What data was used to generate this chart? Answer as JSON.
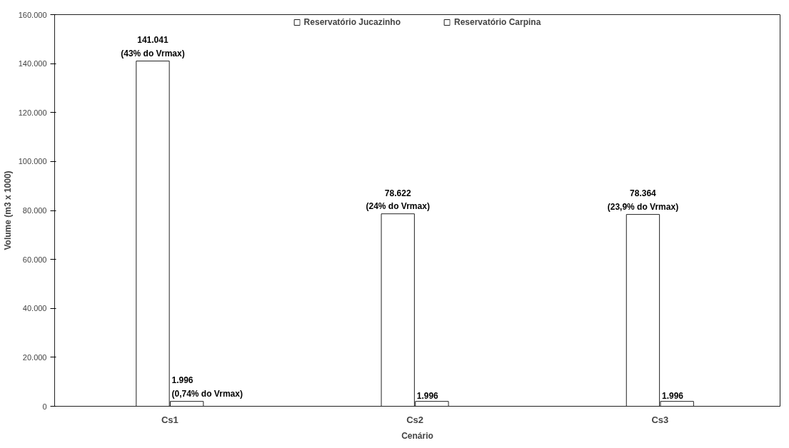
{
  "chart_data": {
    "type": "bar",
    "xlabel": "Cenário",
    "ylabel": "Volume (m3 x 1000)",
    "categories": [
      "Cs1",
      "Cs2",
      "Cs3"
    ],
    "series": [
      {
        "name": "Reservatório Jucazinho",
        "color": "#ffffff",
        "values": [
          141041,
          78622,
          78364
        ],
        "value_labels": [
          "141.041\n(43% do Vrmax)",
          "78.622\n(24% do Vrmax)",
          "78.364\n(23,9% do Vrmax)"
        ]
      },
      {
        "name": "Reservatório Carpina",
        "color": "#ffffff",
        "values": [
          1996,
          1996,
          1996
        ],
        "value_labels": [
          "1.996 (0,74% do Vrmax)",
          "1.996",
          "1.996"
        ]
      }
    ],
    "ylim": [
      0,
      160000
    ],
    "yticks": [
      {
        "value": 0,
        "label": "0"
      },
      {
        "value": 20000,
        "label": "20.000"
      },
      {
        "value": 40000,
        "label": "40.000"
      },
      {
        "value": 60000,
        "label": "60.000"
      },
      {
        "value": 80000,
        "label": "80.000"
      },
      {
        "value": 100000,
        "label": "100.000"
      },
      {
        "value": 120000,
        "label": "120.000"
      },
      {
        "value": 140000,
        "label": "140.000"
      },
      {
        "value": 160000,
        "label": "160.000"
      }
    ],
    "grid": false,
    "legend": "top"
  }
}
